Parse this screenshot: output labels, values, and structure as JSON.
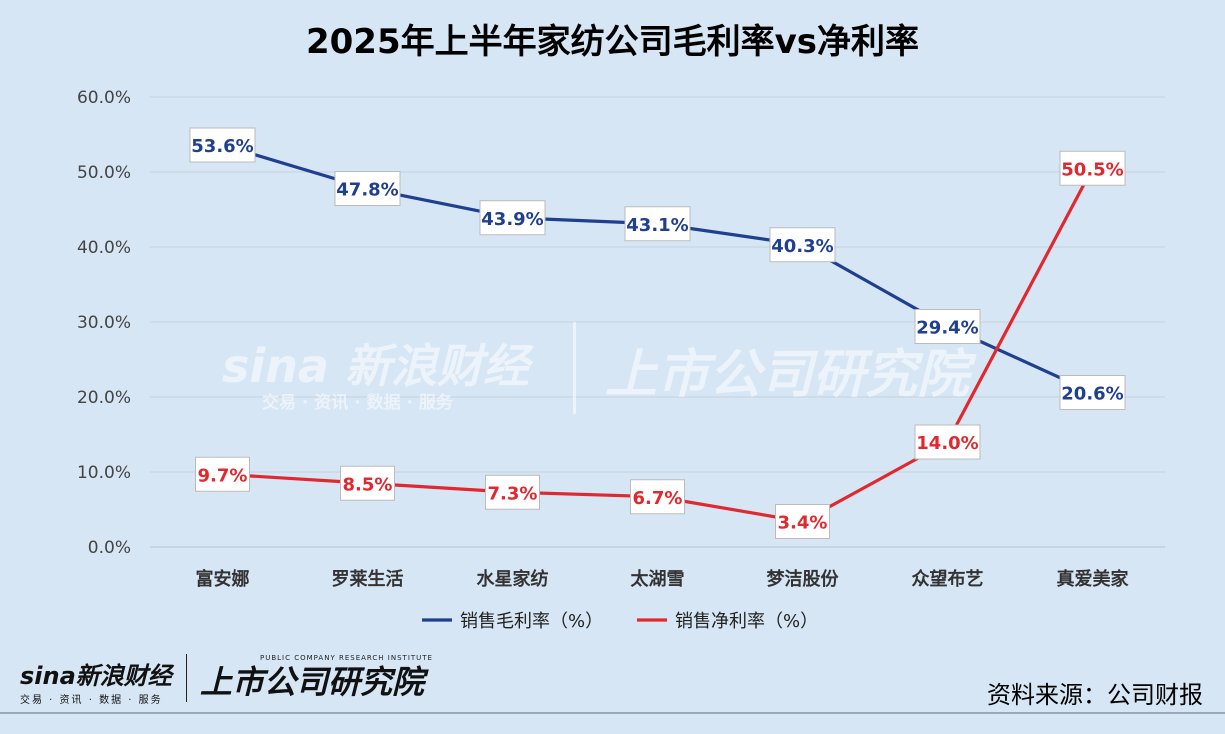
{
  "chart_data": {
    "type": "line",
    "title": "2025年上半年家纺公司毛利率vs净利率",
    "categories": [
      "富安娜",
      "罗莱生活",
      "水星家纺",
      "太湖雪",
      "梦洁股份",
      "众望布艺",
      "真爱美家"
    ],
    "series": [
      {
        "name": "销售毛利率（%）",
        "color": "#1f3f8f",
        "values": [
          53.6,
          47.8,
          43.9,
          43.1,
          40.3,
          29.4,
          20.6
        ]
      },
      {
        "name": "销售净利率（%）",
        "color": "#e0282e",
        "values": [
          9.7,
          8.5,
          7.3,
          6.7,
          3.4,
          14.0,
          50.5
        ]
      }
    ],
    "yticks": [
      "0.0%",
      "10.0%",
      "20.0%",
      "30.0%",
      "40.0%",
      "50.0%",
      "60.0%"
    ],
    "ylim": [
      0,
      60
    ],
    "grid": true,
    "legend": "bottom-center",
    "xlabel": "",
    "ylabel": ""
  },
  "watermark": {
    "sina_text": "sina 新浪财经",
    "sina_sub": "交易 · 资讯 · 数据 · 服务",
    "institute_text": "上市公司研究院"
  },
  "footer": {
    "source": "资料来源：公司财报",
    "logo_sina": "sina新浪财经",
    "logo_sina_sub": "交易 · 资讯 · 数据 · 服务",
    "logo_institute_small": "PUBLIC COMPANY RESEARCH INSTITUTE",
    "logo_institute": "上市公司研究院"
  }
}
